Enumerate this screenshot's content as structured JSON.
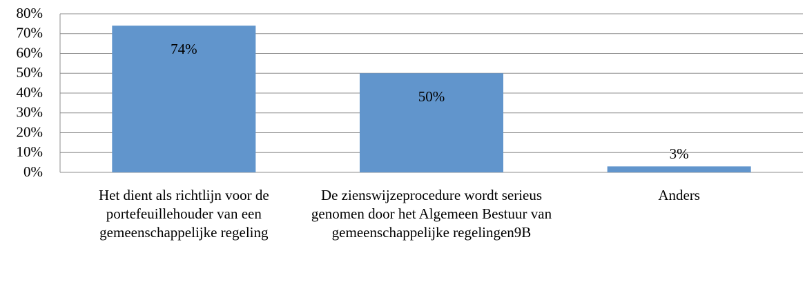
{
  "chart_data": {
    "type": "bar",
    "categories": [
      "Het dient als richtlijn voor de portefeuillehouder van een gemeenschappelijke regeling",
      "De zienswijzeprocedure wordt serieus genomen door het Algemeen Bestuur van gemeenschappelijke regelingen9B",
      "Anders"
    ],
    "values": [
      74,
      50,
      3
    ],
    "value_labels": [
      "74%",
      "50%",
      "3%"
    ],
    "color": "#6195cc",
    "ylim": [
      0,
      80
    ],
    "yticks": [
      {
        "value": 0,
        "label": "0%"
      },
      {
        "value": 10,
        "label": "10%"
      },
      {
        "value": 20,
        "label": "20%"
      },
      {
        "value": 30,
        "label": "30%"
      },
      {
        "value": 40,
        "label": "40%"
      },
      {
        "value": 50,
        "label": "50%"
      },
      {
        "value": 60,
        "label": "60%"
      },
      {
        "value": 70,
        "label": "70%"
      },
      {
        "value": 80,
        "label": "80%"
      }
    ],
    "grid": true
  }
}
